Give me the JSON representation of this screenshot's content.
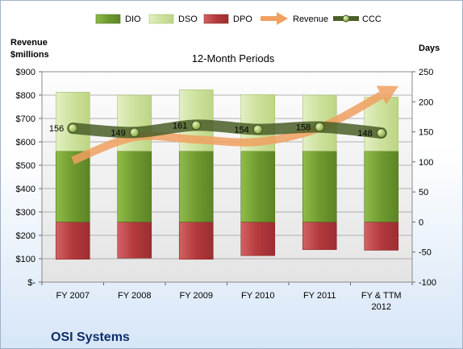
{
  "company": "OSI Systems",
  "chart_data": {
    "type": "bar",
    "subtitle": "12-Month Periods",
    "left_axis": {
      "label_line1": "Revenue",
      "label_line2": "$millions",
      "ylim": [
        0,
        900
      ],
      "ticks": [
        0,
        100,
        200,
        300,
        400,
        500,
        600,
        700,
        800,
        900
      ],
      "tick_labels": [
        "$-",
        "$100",
        "$200",
        "$300",
        "$400",
        "$500",
        "$600",
        "$700",
        "$800",
        "$900"
      ]
    },
    "right_axis": {
      "label": "Days",
      "ylim": [
        -100,
        250
      ],
      "ticks": [
        -100,
        -50,
        0,
        50,
        100,
        150,
        200,
        250
      ]
    },
    "categories": [
      [
        "FY 2007"
      ],
      [
        "FY 2008"
      ],
      [
        "FY 2009"
      ],
      [
        "FY 2010"
      ],
      [
        "FY 2011"
      ],
      [
        "FY & TTM",
        "2012"
      ]
    ],
    "legend": [
      "DIO",
      "DSO",
      "DPO",
      "Revenue",
      "CCC"
    ],
    "series": [
      {
        "name": "DIO",
        "axis": "right",
        "color": "#7aa33b",
        "values": [
          118,
          118,
          118,
          118,
          118,
          118
        ]
      },
      {
        "name": "DSO",
        "axis": "right",
        "color": "#cfe1a3",
        "values": [
          98,
          93,
          102,
          94,
          93,
          90
        ]
      },
      {
        "name": "DPO",
        "axis": "right",
        "color": "#b9484a",
        "values": [
          -62,
          -60,
          -62,
          -56,
          -46,
          -47
        ]
      },
      {
        "name": "Revenue",
        "axis": "left",
        "color": "#f0a060",
        "values": [
          520,
          620,
          610,
          600,
          660,
          800
        ]
      },
      {
        "name": "CCC",
        "axis": "right",
        "color": "#556b2f",
        "values": [
          156,
          149,
          161,
          154,
          158,
          148
        ],
        "labels": [
          "156",
          "149",
          "161",
          "154",
          "158",
          "148"
        ]
      }
    ]
  }
}
